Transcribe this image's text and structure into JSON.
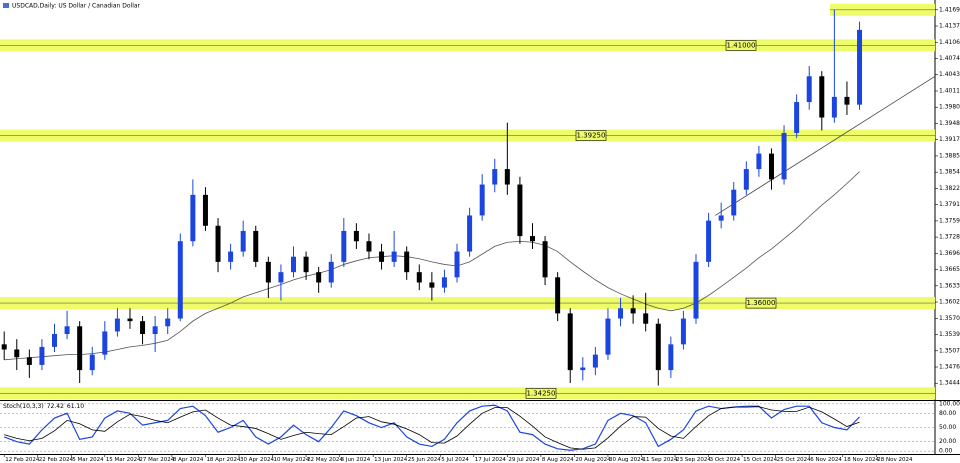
{
  "header": {
    "title": "USDCAD,Daily: US Dollar / Canadian Dollar"
  },
  "chart_data": [
    {
      "type": "candlestick",
      "x": [
        0,
        3,
        6,
        9,
        12,
        15,
        18,
        21,
        24,
        27,
        30,
        33,
        36,
        39,
        42,
        45,
        48,
        51,
        54,
        57,
        60,
        63,
        66,
        69,
        72,
        75,
        78,
        81,
        84,
        87,
        90,
        93,
        96,
        99,
        102,
        105,
        108,
        111,
        114,
        117,
        120,
        123,
        126,
        129,
        132,
        135,
        138,
        141,
        144,
        147,
        150,
        153,
        156,
        159,
        162,
        165,
        168,
        171,
        174,
        177,
        180,
        183,
        186,
        189,
        192,
        195,
        198,
        201,
        204
      ],
      "open": [
        1.352,
        1.351,
        1.3495,
        1.348,
        1.3515,
        1.354,
        1.3555,
        1.347,
        1.35,
        1.3545,
        1.357,
        1.3565,
        1.354,
        1.3555,
        1.357,
        1.372,
        1.381,
        1.375,
        1.368,
        1.37,
        1.374,
        1.368,
        1.364,
        1.366,
        1.369,
        1.366,
        1.364,
        1.368,
        1.374,
        1.372,
        1.37,
        1.368,
        1.37,
        1.366,
        1.364,
        1.363,
        1.365,
        1.37,
        1.377,
        1.383,
        1.386,
        1.383,
        1.373,
        1.372,
        1.365,
        1.358,
        1.347,
        1.3475,
        1.35,
        1.357,
        1.359,
        1.358,
        1.356,
        1.347,
        1.352,
        1.357,
        1.368,
        1.376,
        1.377,
        1.382,
        1.386,
        1.389,
        1.384,
        1.393,
        1.399,
        1.404,
        1.396,
        1.4,
        1.3985
      ],
      "high": [
        1.3545,
        1.353,
        1.351,
        1.353,
        1.356,
        1.3585,
        1.3565,
        1.3515,
        1.3565,
        1.359,
        1.359,
        1.3575,
        1.3575,
        1.359,
        1.3735,
        1.384,
        1.3825,
        1.3765,
        1.3715,
        1.376,
        1.375,
        1.369,
        1.3675,
        1.371,
        1.37,
        1.367,
        1.3695,
        1.3765,
        1.3755,
        1.3735,
        1.3715,
        1.374,
        1.371,
        1.3675,
        1.366,
        1.3665,
        1.3715,
        1.3785,
        1.385,
        1.388,
        1.395,
        1.3845,
        1.3755,
        1.373,
        1.366,
        1.359,
        1.3495,
        1.3515,
        1.359,
        1.361,
        1.3615,
        1.362,
        1.357,
        1.3535,
        1.3585,
        1.3695,
        1.3775,
        1.3795,
        1.3835,
        1.3875,
        1.3905,
        1.39,
        1.3945,
        1.4005,
        1.406,
        1.405,
        1.4169,
        1.403,
        1.4146
      ],
      "low": [
        1.349,
        1.347,
        1.3455,
        1.347,
        1.3505,
        1.353,
        1.3445,
        1.346,
        1.349,
        1.3535,
        1.355,
        1.352,
        1.3505,
        1.354,
        1.3565,
        1.371,
        1.374,
        1.366,
        1.3665,
        1.369,
        1.367,
        1.361,
        1.3605,
        1.365,
        1.3645,
        1.362,
        1.363,
        1.367,
        1.3705,
        1.3685,
        1.3665,
        1.367,
        1.3645,
        1.3625,
        1.3605,
        1.362,
        1.364,
        1.369,
        1.376,
        1.3815,
        1.381,
        1.3715,
        1.3705,
        1.3635,
        1.3565,
        1.3445,
        1.345,
        1.346,
        1.349,
        1.3555,
        1.356,
        1.3545,
        1.344,
        1.3455,
        1.351,
        1.356,
        1.367,
        1.3745,
        1.376,
        1.381,
        1.3845,
        1.382,
        1.383,
        1.392,
        1.3975,
        1.3935,
        1.395,
        1.3965,
        1.3975
      ],
      "close": [
        1.351,
        1.3495,
        1.348,
        1.3515,
        1.354,
        1.3555,
        1.347,
        1.35,
        1.3545,
        1.357,
        1.3565,
        1.354,
        1.3555,
        1.357,
        1.372,
        1.381,
        1.375,
        1.368,
        1.37,
        1.374,
        1.368,
        1.364,
        1.366,
        1.369,
        1.366,
        1.364,
        1.368,
        1.374,
        1.372,
        1.37,
        1.368,
        1.37,
        1.366,
        1.364,
        1.363,
        1.365,
        1.37,
        1.377,
        1.383,
        1.386,
        1.383,
        1.373,
        1.372,
        1.365,
        1.358,
        1.347,
        1.3475,
        1.35,
        1.357,
        1.359,
        1.358,
        1.356,
        1.347,
        1.352,
        1.357,
        1.368,
        1.376,
        1.377,
        1.382,
        1.386,
        1.389,
        1.384,
        1.393,
        1.399,
        1.404,
        1.396,
        1.4,
        1.3985,
        1.413
      ],
      "up_color": "#1c45e0",
      "down_color": "#000000",
      "moving_average": {
        "color": "#555555",
        "values": [
          1.349,
          1.3492,
          1.3494,
          1.3496,
          1.3498,
          1.35,
          1.35,
          1.3502,
          1.3505,
          1.351,
          1.3515,
          1.3518,
          1.3522,
          1.3528,
          1.3545,
          1.3565,
          1.358,
          1.359,
          1.36,
          1.3612,
          1.362,
          1.3628,
          1.3636,
          1.3645,
          1.3652,
          1.3658,
          1.3665,
          1.3675,
          1.3682,
          1.3688,
          1.369,
          1.3692,
          1.369,
          1.3686,
          1.368,
          1.3675,
          1.3672,
          1.368,
          1.3695,
          1.371,
          1.3718,
          1.372,
          1.3718,
          1.3712,
          1.37,
          1.368,
          1.3662,
          1.3645,
          1.363,
          1.3618,
          1.3608,
          1.3598,
          1.359,
          1.3585,
          1.359,
          1.36,
          1.3615,
          1.3632,
          1.365,
          1.3668,
          1.3688,
          1.3705,
          1.3725,
          1.3745,
          1.3768,
          1.379,
          1.381,
          1.3832,
          1.3855
        ]
      },
      "trendline": {
        "color": "#444444",
        "x": [
          169.6,
          222
        ],
        "y": [
          1.377,
          1.404
        ]
      },
      "level_color": "#eefc6a",
      "levels": [
        {
          "value": 1.4169
        },
        {
          "value": 1.41,
          "label": "1.41000"
        },
        {
          "value": 1.3925,
          "label": "1.39250"
        },
        {
          "value": 1.36,
          "label": "1.36000"
        },
        {
          "value": 1.3425,
          "label": "1.34250"
        }
      ],
      "xlim": [
        -1,
        222
      ],
      "ylim": [
        1.3412,
        1.4188
      ],
      "yticks": [
        {
          "value": 1.4169,
          "label": "1.41690"
        },
        1.41375,
        {
          "value": 1.4106,
          "label": "1.41060"
        },
        1.40745,
        {
          "value": 1.4043,
          "label": "1.40430"
        },
        1.40115,
        {
          "value": 1.398,
          "label": "1.39800"
        },
        1.39485,
        {
          "value": 1.3917,
          "label": "1.39170"
        },
        1.38855,
        {
          "value": 1.3854,
          "label": "1.38540"
        },
        1.38225,
        {
          "value": 1.3791,
          "label": "1.37910"
        },
        1.37595,
        {
          "value": 1.3728,
          "label": "1.37280"
        },
        1.36965,
        {
          "value": 1.3665,
          "label": "1.36650"
        },
        1.36335,
        {
          "value": 1.3602,
          "label": "1.36020"
        },
        1.35705,
        {
          "value": 1.3539,
          "label": "1.35390"
        },
        1.35075,
        {
          "value": 1.3476,
          "label": "1.34760"
        },
        1.34445
      ],
      "xticks": [
        {
          "value": 0,
          "label": "12 Feb 2024"
        },
        {
          "value": 8,
          "label": "22 Feb 2024"
        },
        {
          "value": 16,
          "label": "5 Mar 2024"
        },
        {
          "value": 24,
          "label": "15 Mar 2024"
        },
        {
          "value": 32,
          "label": "27 Mar 2024"
        },
        {
          "value": 40,
          "label": "8 Apr 2024"
        },
        {
          "value": 48,
          "label": "18 Apr 2024"
        },
        {
          "value": 56,
          "label": "30 Apr 2024"
        },
        {
          "value": 64,
          "label": "10 May 2024"
        },
        {
          "value": 72,
          "label": "22 May 2024"
        },
        {
          "value": 80,
          "label": "3 Jun 2024"
        },
        {
          "value": 88,
          "label": "13 Jun 2024"
        },
        {
          "value": 96,
          "label": "25 Jun 2024"
        },
        {
          "value": 104,
          "label": "5 Jul 2024"
        },
        {
          "value": 112,
          "label": "17 Jul 2024"
        },
        {
          "value": 120,
          "label": "29 Jul 2024"
        },
        {
          "value": 128,
          "label": "8 Aug 2024"
        },
        {
          "value": 136,
          "label": "20 Aug 2024"
        },
        {
          "value": 144,
          "label": "30 Aug 2024"
        },
        {
          "value": 152,
          "label": "11 Sep 2024"
        },
        {
          "value": 160,
          "label": "23 Sep 2024"
        },
        {
          "value": 168,
          "label": "3 Oct 2024"
        },
        {
          "value": 176,
          "label": "15 Oct 2024"
        },
        {
          "value": 184,
          "label": "25 Oct 2024"
        },
        {
          "value": 192,
          "label": "6 Nov 2024"
        },
        {
          "value": 200,
          "label": "18 Nov 2024"
        },
        {
          "value": 208,
          "label": "28 Nov 2024"
        }
      ]
    },
    {
      "type": "line",
      "title": "Stoch(10,3,3)",
      "readout": {
        "values": [
          72.42,
          61.1
        ],
        "value_labels": [
          "72.42",
          "61.10"
        ]
      },
      "x": [
        0,
        3,
        6,
        9,
        12,
        15,
        18,
        21,
        24,
        27,
        30,
        33,
        36,
        39,
        42,
        45,
        48,
        51,
        54,
        57,
        60,
        63,
        66,
        69,
        72,
        75,
        78,
        81,
        84,
        87,
        90,
        93,
        96,
        99,
        102,
        105,
        108,
        111,
        114,
        117,
        120,
        123,
        126,
        129,
        132,
        135,
        138,
        141,
        144,
        147,
        150,
        153,
        156,
        159,
        162,
        165,
        168,
        171,
        174,
        177,
        180,
        183,
        186,
        189,
        192,
        195,
        198,
        201,
        204
      ],
      "series": [
        {
          "color": "#1c45e0",
          "values": [
            30,
            20,
            15,
            45,
            70,
            80,
            25,
            30,
            70,
            85,
            80,
            55,
            60,
            65,
            90,
            95,
            75,
            40,
            50,
            65,
            30,
            15,
            30,
            55,
            35,
            20,
            50,
            85,
            75,
            60,
            50,
            60,
            30,
            15,
            10,
            25,
            60,
            85,
            95,
            97,
            85,
            40,
            35,
            15,
            5,
            2,
            5,
            15,
            65,
            80,
            75,
            60,
            10,
            25,
            45,
            85,
            95,
            90,
            93,
            95,
            95,
            70,
            88,
            95,
            95,
            60,
            50,
            45,
            72.42
          ]
        },
        {
          "color": "#000000",
          "values": [
            35,
            27,
            22,
            27,
            43,
            65,
            58,
            45,
            42,
            62,
            78,
            73,
            65,
            60,
            72,
            83,
            87,
            70,
            55,
            52,
            48,
            37,
            25,
            33,
            40,
            37,
            35,
            52,
            70,
            73,
            62,
            57,
            47,
            35,
            18,
            17,
            32,
            57,
            80,
            92,
            92,
            74,
            53,
            30,
            18,
            7,
            4,
            7,
            28,
            53,
            73,
            72,
            48,
            32,
            27,
            52,
            75,
            90,
            93,
            93,
            94,
            87,
            84,
            84,
            93,
            83,
            68,
            52,
            61.1
          ]
        }
      ],
      "xlim": [
        -1,
        222
      ],
      "ylim": [
        -6,
        106
      ],
      "yticks": [
        {
          "value": 100,
          "label": "100.00"
        },
        {
          "value": 80,
          "label": "80.00"
        },
        {
          "value": 50,
          "label": "50.00"
        },
        {
          "value": 20,
          "label": "20.00"
        },
        {
          "value": 0,
          "label": "0.00"
        }
      ]
    }
  ]
}
